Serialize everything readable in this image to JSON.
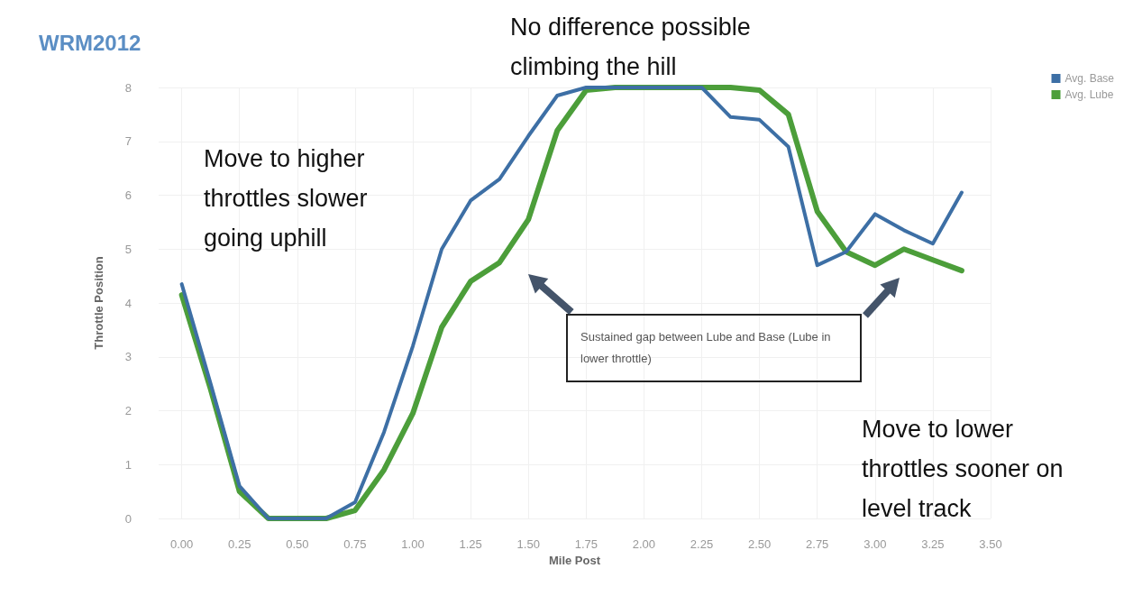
{
  "chart_data": {
    "type": "line",
    "title": "WRM2012",
    "xlabel": "Mile Post",
    "ylabel": "Throttle Position",
    "x": [
      0,
      0.125,
      0.25,
      0.375,
      0.5,
      0.625,
      0.75,
      0.875,
      1.0,
      1.125,
      1.25,
      1.375,
      1.5,
      1.625,
      1.75,
      1.875,
      2.0,
      2.125,
      2.25,
      2.375,
      2.5,
      2.625,
      2.75,
      2.875,
      3.0,
      3.125,
      3.25,
      3.375
    ],
    "series": [
      {
        "name": "Avg. Base",
        "color": "#3d6fa5",
        "values": [
          4.35,
          2.5,
          0.6,
          0,
          0,
          0,
          0.3,
          1.6,
          3.2,
          5.0,
          5.9,
          6.3,
          7.1,
          7.85,
          8,
          8,
          8,
          8,
          8,
          7.45,
          7.4,
          6.9,
          4.7,
          4.95,
          5.65,
          5.35,
          5.1,
          6.05
        ]
      },
      {
        "name": "Avg. Lube",
        "color": "#4c9e3a",
        "values": [
          4.15,
          2.4,
          0.5,
          0,
          0,
          0,
          0.15,
          0.9,
          1.95,
          3.55,
          4.4,
          4.75,
          5.55,
          7.2,
          7.95,
          8,
          8,
          8,
          8,
          8,
          7.95,
          7.5,
          5.7,
          4.95,
          4.7,
          5.0,
          4.8,
          4.6
        ]
      }
    ],
    "xlim": [
      -0.1,
      3.5
    ],
    "xticks": [
      {
        "value": 0,
        "label": "0.00"
      },
      {
        "value": 0.25,
        "label": "0.25"
      },
      {
        "value": 0.5,
        "label": "0.50"
      },
      {
        "value": 0.75,
        "label": "0.75"
      },
      {
        "value": 1,
        "label": "1.00"
      },
      {
        "value": 1.25,
        "label": "1.25"
      },
      {
        "value": 1.5,
        "label": "1.50"
      },
      {
        "value": 1.75,
        "label": "1.75"
      },
      {
        "value": 2,
        "label": "2.00"
      },
      {
        "value": 2.25,
        "label": "2.25"
      },
      {
        "value": 2.5,
        "label": "2.50"
      },
      {
        "value": 2.75,
        "label": "2.75"
      },
      {
        "value": 3,
        "label": "3.00"
      },
      {
        "value": 3.25,
        "label": "3.25"
      },
      {
        "value": 3.5,
        "label": "3.50"
      }
    ],
    "ylim": [
      0,
      8
    ],
    "yticks": [
      0,
      1,
      2,
      3,
      4,
      5,
      6,
      7,
      8
    ],
    "grid": true,
    "legend": "top right",
    "marker": "none",
    "line_style": "solid",
    "annotations": [
      "No difference possible climbing the hill",
      "Move to higher throttles slower going uphill",
      "Sustained gap between Lube and Base (Lube in lower throttle)",
      "Move to lower throttles sooner on level track"
    ]
  }
}
